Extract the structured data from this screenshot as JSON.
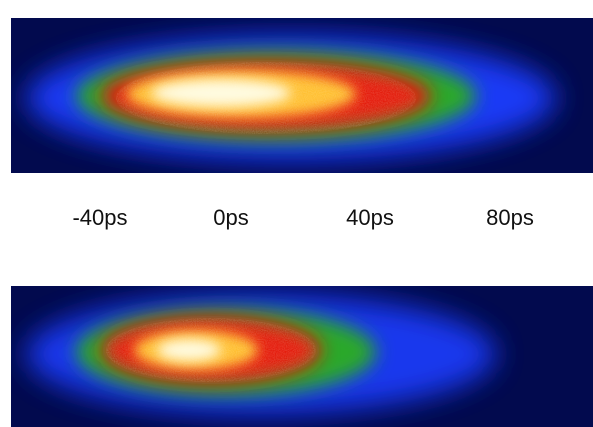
{
  "axis": {
    "ticks": [
      "-40ps",
      "0ps",
      "40ps",
      "80ps"
    ]
  },
  "colors": {
    "background": "#020a4e",
    "blue": "#1f3cff",
    "green": "#2ca82c",
    "red": "#e51a0e",
    "yellow": "#ffe070",
    "white": "#fffbe0"
  },
  "images": {
    "top": "heatmap-streak",
    "bottom": "heatmap-streak"
  }
}
